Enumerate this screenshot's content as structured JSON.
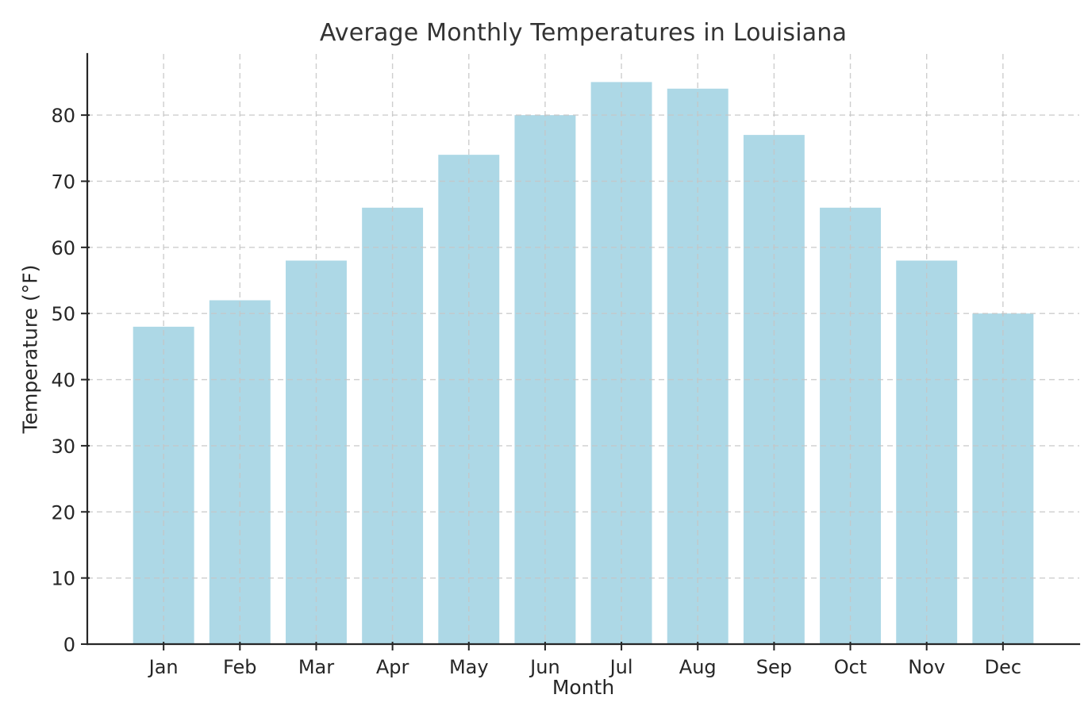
{
  "chart_data": {
    "type": "bar",
    "title": "Average Monthly Temperatures in Louisiana",
    "xlabel": "Month",
    "ylabel": "Temperature (°F)",
    "categories": [
      "Jan",
      "Feb",
      "Mar",
      "Apr",
      "May",
      "Jun",
      "Jul",
      "Aug",
      "Sep",
      "Oct",
      "Nov",
      "Dec"
    ],
    "values": [
      48,
      52,
      58,
      66,
      74,
      80,
      85,
      84,
      77,
      66,
      58,
      50
    ],
    "ylim": [
      0,
      89.25
    ],
    "yticks": [
      0,
      10,
      20,
      30,
      40,
      50,
      60,
      70,
      80
    ],
    "bar_color": "#ADD8E6",
    "bar_width_fraction": 0.8,
    "grid": "dashed gridlines on both axes, drawn above bars",
    "grid_color": "#c6c6c6",
    "axis_color": "#262626",
    "text_color": "#262626",
    "title_color": "#333333",
    "background_color": "#ffffff",
    "legend": "none"
  }
}
